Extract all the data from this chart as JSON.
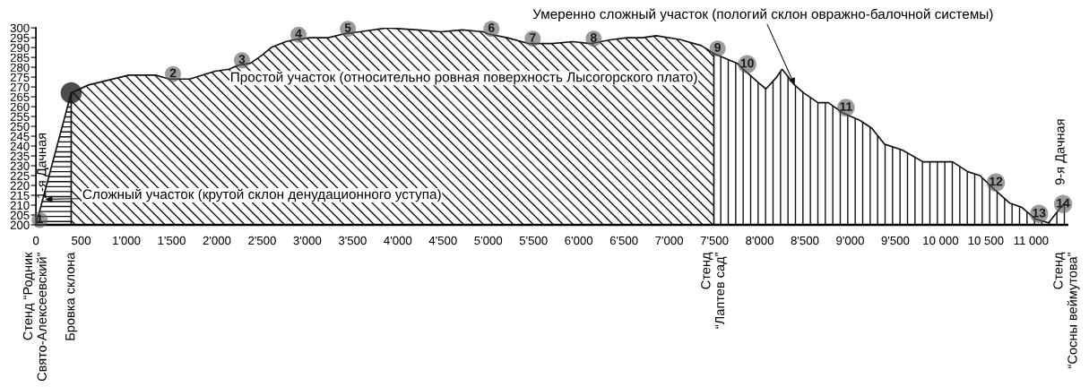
{
  "chart_data": {
    "type": "area",
    "series": [
      {
        "color": "#111111",
        "x": [
          0,
          390
        ],
        "values": [
          200,
          267
        ]
      },
      {
        "color": "#111111",
        "x": [
          390,
          580,
          1027,
          1323,
          1474,
          1700,
          1980,
          2135,
          2236,
          2370,
          2496,
          2600,
          2762,
          2861,
          3030,
          3230,
          3407,
          3580,
          3882,
          4220,
          4480,
          4712,
          4944,
          4994,
          5210,
          5450,
          5708,
          5936,
          6124,
          6364,
          6533,
          6700,
          6858,
          7127,
          7355,
          7494
        ],
        "values": [
          267,
          271,
          276,
          276,
          274,
          274,
          278,
          279,
          281,
          282,
          286,
          290,
          293,
          294,
          295,
          295,
          297,
          298,
          300,
          299,
          298,
          299,
          298,
          297,
          295,
          292,
          292,
          293,
          292,
          294,
          295,
          295,
          296,
          294,
          291,
          287
        ]
      },
      {
        "color": "#111111",
        "x": [
          7494,
          7752,
          7821,
          7990,
          8070,
          8188,
          8248,
          8318,
          8387,
          8486,
          8645,
          8760,
          8913,
          9111,
          9240,
          9379,
          9578,
          9805,
          10133,
          10300,
          10435,
          10570,
          10766,
          10894,
          11047,
          11194,
          11313,
          11390
        ],
        "values": [
          287,
          282,
          279,
          272,
          269,
          275,
          279,
          275,
          271,
          267,
          262,
          262,
          257,
          253,
          249,
          241,
          238,
          232,
          232,
          227,
          225,
          219,
          211,
          209,
          203,
          201,
          208,
          212
        ]
      },
      {
        "type": "scatter",
        "color": "#111111",
        "marker": "circle",
        "x": [
          390
        ],
        "values": [
          267
        ]
      }
    ],
    "xlim": [
      0,
      11400
    ],
    "xticks": [
      0,
      500,
      {
        "value": 1000,
        "label": "1'000"
      },
      {
        "value": 1500,
        "label": "1'500"
      },
      {
        "value": 2000,
        "label": "2'000"
      },
      {
        "value": 2500,
        "label": "2'500"
      },
      {
        "value": 3000,
        "label": "3'000"
      },
      {
        "value": 3500,
        "label": "3'500"
      },
      {
        "value": 4000,
        "label": "4'000"
      },
      {
        "value": 4500,
        "label": "4'500"
      },
      {
        "value": 5000,
        "label": "5'000"
      },
      {
        "value": 5500,
        "label": "5'500"
      },
      {
        "value": 6000,
        "label": "6'000"
      },
      {
        "value": 6500,
        "label": "6'500"
      },
      {
        "value": 7000,
        "label": "7'000"
      },
      {
        "value": 7500,
        "label": "7'500"
      },
      {
        "value": 8000,
        "label": "8'000"
      },
      {
        "value": 8500,
        "label": "8'500"
      },
      {
        "value": 9000,
        "label": "9'000"
      },
      {
        "value": 9500,
        "label": "9'500"
      },
      {
        "value": 10000,
        "label": "10 000"
      },
      {
        "value": 10500,
        "label": "10 500"
      },
      {
        "value": 11000,
        "label": "11 000"
      }
    ],
    "ylim": [
      200,
      300
    ],
    "yticks": [
      200,
      205,
      210,
      215,
      220,
      225,
      230,
      235,
      240,
      245,
      250,
      255,
      260,
      265,
      270,
      275,
      280,
      285,
      290,
      295,
      300
    ],
    "annotations": [
      "Простой участок (относительно ровная поверхность Лысогорского плато)",
      {
        "text": "Сложный участок (крутой склон денудационного уступа)",
        "x": 103,
        "y": 213
      },
      {
        "text": "Умеренно сложный участок (пологий склон овражно-балочной системы)",
        "x": 8387,
        "y": 271
      },
      "1-я Дачная",
      "9-я Дачная",
      {
        "text": "Стенд “Родник\nСвято-Алексеевский”",
        "x": 0,
        "y": 200
      },
      {
        "text": "Бровка склона",
        "x": 390,
        "y": 200
      },
      {
        "text": "Стенд\n“Лаптев сад”",
        "x": 7494,
        "y": 200
      },
      {
        "text": "Стенд\n“Сосны веймутова”",
        "x": 11390,
        "y": 200
      },
      {
        "text": "1",
        "x": 0,
        "y": 200
      },
      {
        "text": "2",
        "x": 1474,
        "y": 274
      },
      {
        "text": "3",
        "x": 2236,
        "y": 281
      },
      {
        "text": "4",
        "x": 2861,
        "y": 294
      },
      {
        "text": "5",
        "x": 3407,
        "y": 297
      },
      {
        "text": "6",
        "x": 4994,
        "y": 297
      },
      {
        "text": "7",
        "x": 5450,
        "y": 292
      },
      {
        "text": "8",
        "x": 6124,
        "y": 292
      },
      {
        "text": "9",
        "x": 7494,
        "y": 287
      },
      {
        "text": "10",
        "x": 7821,
        "y": 279
      },
      {
        "text": "11",
        "x": 8913,
        "y": 257
      },
      {
        "text": "12",
        "x": 10570,
        "y": 219
      },
      {
        "text": "13",
        "x": 11047,
        "y": 203
      },
      {
        "text": "14",
        "x": 11313,
        "y": 208
      }
    ]
  }
}
